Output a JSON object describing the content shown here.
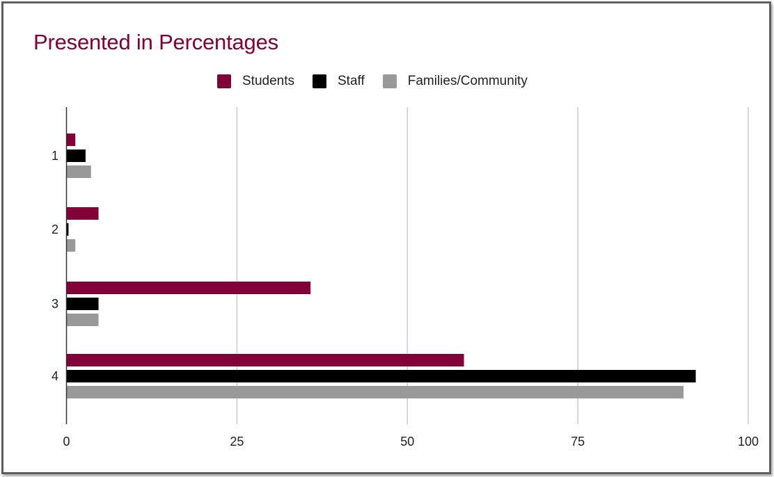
{
  "chart_data": {
    "type": "bar",
    "orientation": "horizontal",
    "title": "Presented in Percentages",
    "xlabel": "",
    "ylabel": "",
    "categories": [
      "1",
      "2",
      "3",
      "4"
    ],
    "series": [
      {
        "name": "Students",
        "color": "#800037",
        "values": [
          1.3,
          4.7,
          35.8,
          58.3
        ]
      },
      {
        "name": "Staff",
        "color": "#000000",
        "values": [
          2.8,
          0.3,
          4.7,
          92.3
        ]
      },
      {
        "name": "Families/Community",
        "color": "#999999",
        "values": [
          3.6,
          1.3,
          4.7,
          90.5
        ]
      }
    ],
    "xlim": [
      0,
      100
    ],
    "xticks": [
      0,
      25,
      50,
      75,
      100
    ],
    "grid": true,
    "legend_position": "top"
  }
}
